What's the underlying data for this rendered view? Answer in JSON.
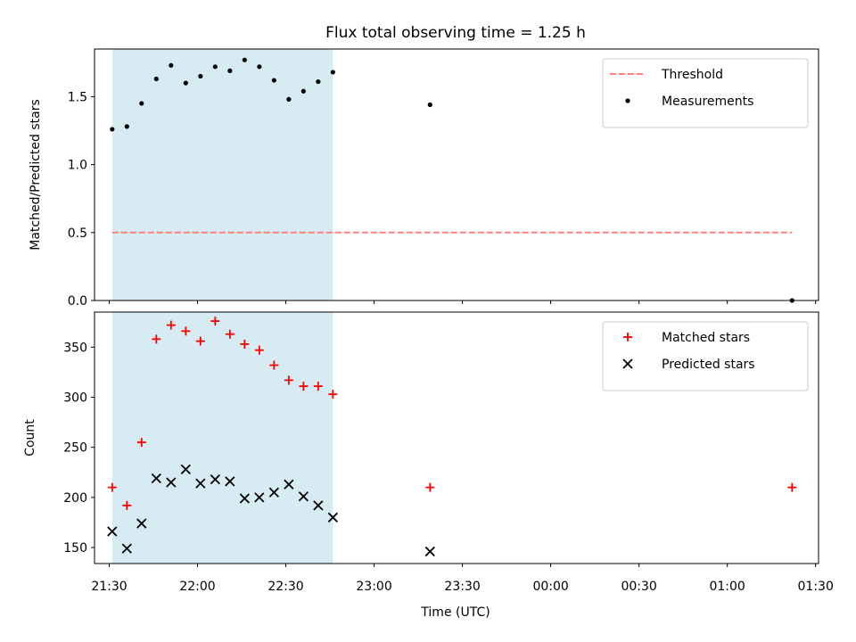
{
  "chart_data": [
    {
      "type": "scatter",
      "title": "Flux total observing time = 1.25 h",
      "ylabel": "Matched/Predicted stars",
      "xlabel": "",
      "ylim": [
        0,
        1.85
      ],
      "yticks": [
        0.0,
        0.5,
        1.0,
        1.5
      ],
      "ytick_labels": [
        "0.0",
        "0.5",
        "1.0",
        "1.5"
      ],
      "xlim": [
        "21:25",
        "01:31"
      ],
      "shaded_interval": {
        "start": "21:31",
        "end": "22:46",
        "color": "#add8e6"
      },
      "legend": {
        "placement": "top-right",
        "entries": [
          "Threshold",
          "Measurements"
        ]
      },
      "threshold": {
        "name": "Threshold",
        "value": 0.5,
        "x_range": [
          "21:31",
          "01:22"
        ],
        "color": "#ff8080",
        "style": "dashed"
      },
      "series": [
        {
          "name": "Measurements",
          "marker": "dot",
          "color": "#000000",
          "points": [
            {
              "x": "21:31",
              "y": 1.26
            },
            {
              "x": "21:36",
              "y": 1.28
            },
            {
              "x": "21:41",
              "y": 1.45
            },
            {
              "x": "21:46",
              "y": 1.63
            },
            {
              "x": "21:51",
              "y": 1.73
            },
            {
              "x": "21:56",
              "y": 1.6
            },
            {
              "x": "22:01",
              "y": 1.65
            },
            {
              "x": "22:06",
              "y": 1.72
            },
            {
              "x": "22:11",
              "y": 1.69
            },
            {
              "x": "22:16",
              "y": 1.77
            },
            {
              "x": "22:21",
              "y": 1.72
            },
            {
              "x": "22:26",
              "y": 1.62
            },
            {
              "x": "22:31",
              "y": 1.48
            },
            {
              "x": "22:36",
              "y": 1.54
            },
            {
              "x": "22:41",
              "y": 1.61
            },
            {
              "x": "22:46",
              "y": 1.68
            },
            {
              "x": "23:19",
              "y": 1.44
            },
            {
              "x": "01:22",
              "y": 0.0
            }
          ]
        }
      ]
    },
    {
      "type": "scatter",
      "title": "",
      "ylabel": "Count",
      "xlabel": "Time (UTC)",
      "ylim": [
        134,
        385
      ],
      "yticks": [
        150,
        200,
        250,
        300,
        350
      ],
      "ytick_labels": [
        "150",
        "200",
        "250",
        "300",
        "350"
      ],
      "xlim": [
        "21:25",
        "01:31"
      ],
      "xticks": [
        "21:30",
        "22:00",
        "22:30",
        "23:00",
        "23:30",
        "00:00",
        "00:30",
        "01:00",
        "01:30"
      ],
      "xtick_labels": [
        "21:30",
        "22:00",
        "22:30",
        "23:00",
        "23:30",
        "00:00",
        "00:30",
        "01:00",
        "01:30"
      ],
      "shaded_interval": {
        "start": "21:31",
        "end": "22:46",
        "color": "#add8e6"
      },
      "legend": {
        "placement": "top-right",
        "entries": [
          "Matched stars",
          "Predicted stars"
        ]
      },
      "series": [
        {
          "name": "Matched stars",
          "marker": "plus",
          "color": "#ff0000",
          "points": [
            {
              "x": "21:31",
              "y": 210
            },
            {
              "x": "21:36",
              "y": 192
            },
            {
              "x": "21:41",
              "y": 255
            },
            {
              "x": "21:46",
              "y": 358
            },
            {
              "x": "21:51",
              "y": 372
            },
            {
              "x": "21:56",
              "y": 366
            },
            {
              "x": "22:01",
              "y": 356
            },
            {
              "x": "22:06",
              "y": 376
            },
            {
              "x": "22:11",
              "y": 363
            },
            {
              "x": "22:16",
              "y": 353
            },
            {
              "x": "22:21",
              "y": 347
            },
            {
              "x": "22:26",
              "y": 332
            },
            {
              "x": "22:31",
              "y": 317
            },
            {
              "x": "22:36",
              "y": 311
            },
            {
              "x": "22:41",
              "y": 311
            },
            {
              "x": "22:46",
              "y": 303
            },
            {
              "x": "23:19",
              "y": 210
            },
            {
              "x": "01:22",
              "y": 210
            }
          ]
        },
        {
          "name": "Predicted stars",
          "marker": "x",
          "color": "#000000",
          "points": [
            {
              "x": "21:31",
              "y": 166
            },
            {
              "x": "21:36",
              "y": 149
            },
            {
              "x": "21:41",
              "y": 174
            },
            {
              "x": "21:46",
              "y": 219
            },
            {
              "x": "21:51",
              "y": 215
            },
            {
              "x": "21:56",
              "y": 228
            },
            {
              "x": "22:01",
              "y": 214
            },
            {
              "x": "22:06",
              "y": 218
            },
            {
              "x": "22:11",
              "y": 216
            },
            {
              "x": "22:16",
              "y": 199
            },
            {
              "x": "22:21",
              "y": 200
            },
            {
              "x": "22:26",
              "y": 205
            },
            {
              "x": "22:31",
              "y": 213
            },
            {
              "x": "22:36",
              "y": 201
            },
            {
              "x": "22:41",
              "y": 192
            },
            {
              "x": "22:46",
              "y": 180
            },
            {
              "x": "23:19",
              "y": 146
            }
          ]
        }
      ]
    }
  ]
}
